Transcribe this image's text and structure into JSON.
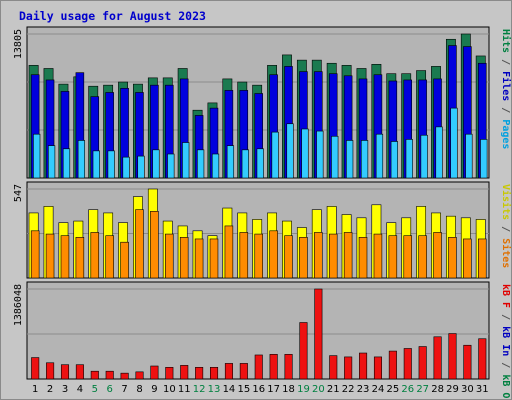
{
  "chart_data": {
    "type": "bar",
    "title": "Daily usage for August 2023",
    "grid": true,
    "days": [
      "1",
      "2",
      "3",
      "4",
      "5",
      "6",
      "7",
      "8",
      "9",
      "10",
      "11",
      "12",
      "13",
      "14",
      "15",
      "16",
      "17",
      "18",
      "19",
      "20",
      "21",
      "22",
      "23",
      "24",
      "25",
      "26",
      "27",
      "28",
      "29",
      "30",
      "31"
    ],
    "weekend_days": [
      "5",
      "6",
      "12",
      "13",
      "19",
      "20",
      "26",
      "27"
    ],
    "panels": [
      {
        "id": "top",
        "ymax_label": "13805",
        "ymax": 13805,
        "right_labels": [
          {
            "text": "Hits",
            "color": "#008040"
          },
          {
            "text": " / ",
            "color": "#555555"
          },
          {
            "text": "Files",
            "color": "#0000c0"
          },
          {
            "text": " / ",
            "color": "#555555"
          },
          {
            "text": "Pages",
            "color": "#00a0e0"
          }
        ],
        "series": [
          {
            "name": "Hits",
            "color": "#1a7a50",
            "values": [
              10800,
              10500,
              9000,
              9700,
              8800,
              8900,
              9200,
              9000,
              9600,
              9600,
              10500,
              6500,
              7200,
              9500,
              9200,
              8900,
              10800,
              11800,
              11300,
              11300,
              11000,
              10800,
              10500,
              10900,
              10000,
              10000,
              10300,
              10700,
              13300,
              13805,
              11700
            ]
          },
          {
            "name": "Files",
            "color": "#0000dd",
            "values": [
              9900,
              9400,
              8300,
              10100,
              7800,
              8200,
              8600,
              8200,
              8900,
              8900,
              9500,
              6000,
              6700,
              8400,
              8400,
              8100,
              9900,
              10700,
              10200,
              10200,
              10000,
              9800,
              9500,
              9900,
              9300,
              9400,
              9400,
              9500,
              12700,
              12600,
              11000
            ]
          },
          {
            "name": "Pages",
            "color": "#33ccff",
            "values": [
              4200,
              3100,
              2800,
              3600,
              2600,
              2600,
              2000,
              2100,
              2700,
              2300,
              3400,
              2700,
              2300,
              3100,
              2700,
              2800,
              4400,
              5200,
              4700,
              4500,
              4000,
              3600,
              3600,
              4200,
              3500,
              3700,
              4100,
              4900,
              6700,
              4200,
              3700
            ]
          }
        ]
      },
      {
        "id": "middle",
        "ymax_label": "547",
        "ymax": 547,
        "right_labels": [
          {
            "text": "Visits",
            "color": "#c8c800"
          },
          {
            "text": " / ",
            "color": "#555555"
          },
          {
            "text": "Sites",
            "color": "#e07000"
          }
        ],
        "series": [
          {
            "name": "Visits",
            "color": "#ffff00",
            "values": [
              400,
              440,
              340,
              350,
              420,
              400,
              340,
              500,
              547,
              350,
              320,
              290,
              260,
              430,
              400,
              360,
              400,
              350,
              310,
              420,
              440,
              390,
              370,
              450,
              340,
              370,
              440,
              400,
              380,
              370,
              360
            ]
          },
          {
            "name": "Sites",
            "color": "#ff8c00",
            "values": [
              290,
              270,
              260,
              250,
              280,
              260,
              220,
              420,
              410,
              270,
              250,
              240,
              240,
              320,
              280,
              270,
              290,
              260,
              250,
              280,
              270,
              280,
              250,
              270,
              260,
              260,
              260,
              280,
              250,
              240,
              240
            ]
          }
        ]
      },
      {
        "id": "bottom",
        "ymax_label": "1386048",
        "ymax": 1386048,
        "right_labels": [
          {
            "text": "kB F",
            "color": "#e00000"
          },
          {
            "text": " / ",
            "color": "#555555"
          },
          {
            "text": "kB In",
            "color": "#0000c0"
          },
          {
            "text": " / ",
            "color": "#555555"
          },
          {
            "text": "kB Out",
            "color": "#008040"
          }
        ],
        "series": [
          {
            "name": "kB F",
            "color": "#ee1111",
            "values": [
              330000,
              250000,
              220000,
              220000,
              120000,
              120000,
              90000,
              110000,
              200000,
              180000,
              210000,
              180000,
              180000,
              240000,
              240000,
              370000,
              380000,
              380000,
              870000,
              1386048,
              360000,
              340000,
              400000,
              340000,
              430000,
              470000,
              500000,
              650000,
              700000,
              520000,
              620000
            ]
          }
        ]
      }
    ]
  },
  "colors": {
    "background": "#c6c6c6",
    "plot_background": "#b4b4b4",
    "title": "#0000cc",
    "weekday_label": "#000000",
    "weekend_label": "#008040"
  }
}
